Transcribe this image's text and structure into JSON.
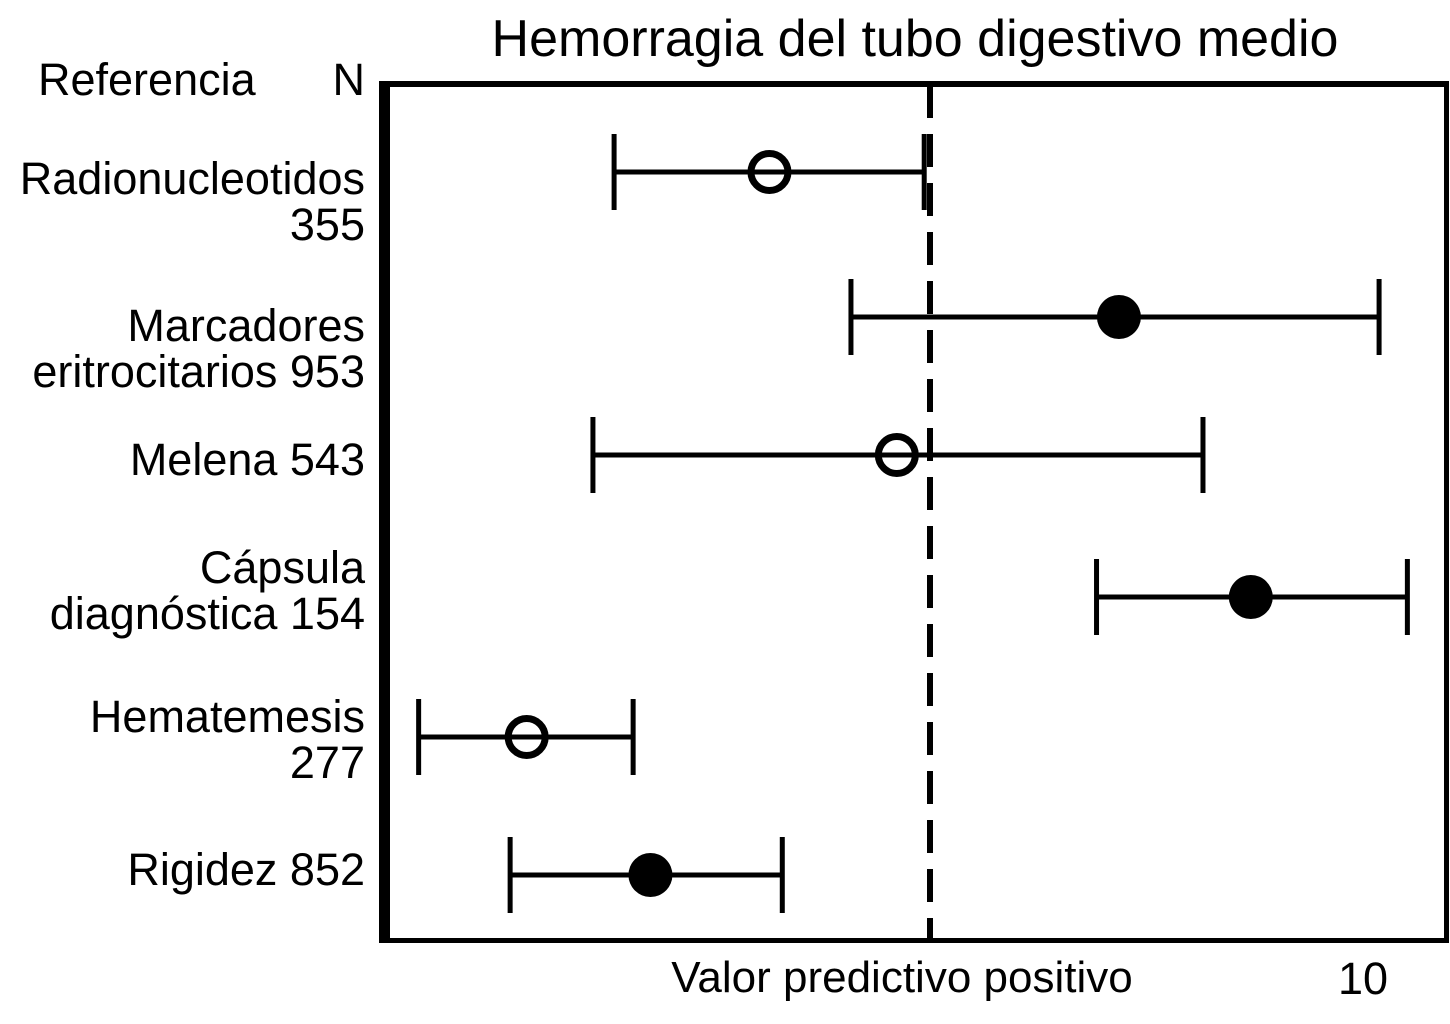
{
  "chart_data": {
    "type": "forest",
    "title": "Hemorragia del tubo digestivo medio",
    "xlabel": "Valor predictivo positivo",
    "x_scale": "log",
    "x_tick_labels": [
      "10"
    ],
    "x_tick_values": [
      10
    ],
    "x_range_approx": [
      0.06,
      15
    ],
    "reference_line_value": 1,
    "reference_line_style": "dashed",
    "column_headers": {
      "referencia": "Referencia",
      "n": "N"
    },
    "rows": [
      {
        "label_lines": [
          "Radionucleotidos",
          "355"
        ],
        "name": "Radionucleotidos",
        "n": 355,
        "point": 0.43,
        "ci_low": 0.19,
        "ci_high": 0.97,
        "marker": "open"
      },
      {
        "label_lines": [
          "Marcadores",
          "eritrocitarios 953"
        ],
        "name": "Marcadores eritrocitarios",
        "n": 953,
        "point": 2.7,
        "ci_low": 0.66,
        "ci_high": 10.6,
        "marker": "filled"
      },
      {
        "label_lines": [
          "Melena 543"
        ],
        "name": "Melena",
        "n": 543,
        "point": 0.84,
        "ci_low": 0.17,
        "ci_high": 4.2,
        "marker": "open"
      },
      {
        "label_lines": [
          "Cápsula",
          "diagnóstica 154"
        ],
        "name": "Cápsula diagnóstica",
        "n": 154,
        "point": 5.4,
        "ci_low": 2.4,
        "ci_high": 12.3,
        "marker": "filled"
      },
      {
        "label_lines": [
          "Hematemesis",
          "277"
        ],
        "name": "Hematemesis",
        "n": 277,
        "point": 0.12,
        "ci_low": 0.068,
        "ci_high": 0.21,
        "marker": "open"
      },
      {
        "label_lines": [
          "Rigidez 852"
        ],
        "name": "Rigidez",
        "n": 852,
        "point": 0.23,
        "ci_low": 0.11,
        "ci_high": 0.46,
        "marker": "filled"
      }
    ],
    "legend": {
      "open_marker": "open",
      "filled_marker": "filled",
      "position": "none"
    },
    "grid": false
  },
  "colors": {
    "ink": "#000000",
    "background": "#ffffff"
  }
}
